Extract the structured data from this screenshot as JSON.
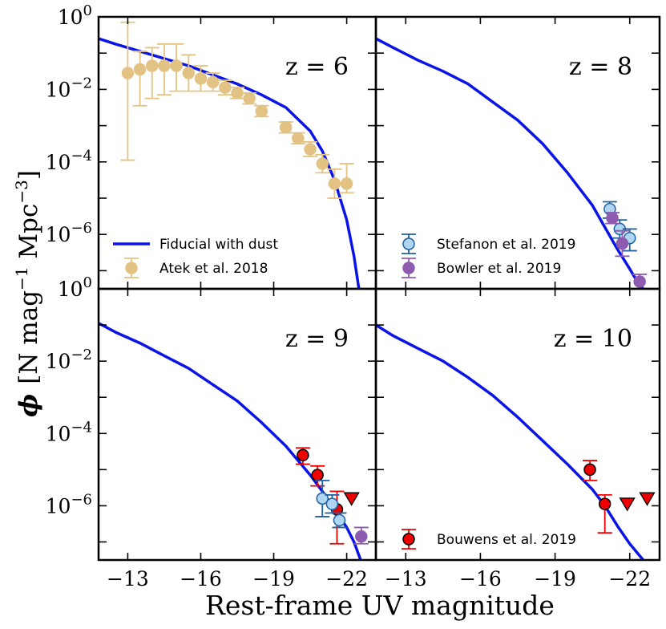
{
  "figure": {
    "ylabel_prefix": "ϕ",
    "ylabel_text": "[N mag",
    "ylabel_exp1": "−1",
    "ylabel_mid": " Mpc",
    "ylabel_exp2": "−3",
    "ylabel_end": "]",
    "xlabel": "Rest-frame UV magnitude"
  },
  "colors": {
    "model": "#0a14e6",
    "atek": "#e2c383",
    "stefanon_fill": "#aed6f2",
    "stefanon_edge": "#2060a0",
    "bowler": "#8e5bb0",
    "bouwens": "#ee0000"
  },
  "chart_data": {
    "type": "scatter",
    "shared": {
      "xlim": [
        -11.8,
        -23.2
      ],
      "ylim_log10": [
        -7.5,
        0
      ],
      "xticks": [
        -13,
        -16,
        -19,
        -22
      ],
      "xtick_labels": [
        "−13",
        "−16",
        "−19",
        "−22"
      ],
      "yticks_log10": [
        0,
        -2,
        -4,
        -6
      ],
      "ytick_base": "10",
      "ytick_exponents": [
        "0",
        "−2",
        "−4",
        "−6"
      ],
      "xlabel": "Rest-frame UV magnitude",
      "ylabel": "ϕ [N mag−1 Mpc−3]"
    },
    "panels": [
      {
        "id": "z6",
        "label": "z = 6",
        "show_ytick_labels": true,
        "show_xtick_labels": false,
        "show_top_ytick": true,
        "model": {
          "name": "Fiducial with dust",
          "x": [
            -11.8,
            -12.5,
            -13.5,
            -14.5,
            -15.5,
            -16.5,
            -17.5,
            -18.5,
            -19.5,
            -20.5,
            -21.0,
            -21.5,
            -22.0,
            -22.3,
            -22.5
          ],
          "log10_y": [
            -0.6,
            -0.75,
            -0.95,
            -1.15,
            -1.35,
            -1.6,
            -1.85,
            -2.15,
            -2.5,
            -3.15,
            -3.7,
            -4.5,
            -5.6,
            -6.6,
            -7.5
          ]
        },
        "series": [
          {
            "name": "Atek et al. 2018",
            "marker": "circle",
            "color_key": "atek",
            "points": [
              {
                "x": -13.0,
                "log10_y": -1.55,
                "lo": -3.95,
                "hi": -0.15
              },
              {
                "x": -13.5,
                "log10_y": -1.45,
                "lo": -2.45,
                "hi": -0.95
              },
              {
                "x": -14.0,
                "log10_y": -1.35,
                "lo": -2.25,
                "hi": -0.85
              },
              {
                "x": -14.5,
                "log10_y": -1.35,
                "lo": -2.15,
                "hi": -0.75
              },
              {
                "x": -15.0,
                "log10_y": -1.35,
                "lo": -2.05,
                "hi": -0.75
              },
              {
                "x": -15.5,
                "log10_y": -1.55,
                "lo": -2.05,
                "hi": -1.05
              },
              {
                "x": -16.0,
                "log10_y": -1.7,
                "lo": -2.05,
                "hi": -1.35
              },
              {
                "x": -16.5,
                "log10_y": -1.8,
                "lo": -2.05,
                "hi": -1.55
              },
              {
                "x": -17.0,
                "log10_y": -1.95,
                "lo": -2.15,
                "hi": -1.75
              },
              {
                "x": -17.5,
                "log10_y": -2.1,
                "lo": -2.25,
                "hi": -1.95
              },
              {
                "x": -18.0,
                "log10_y": -2.25,
                "lo": -2.4,
                "hi": -2.1
              },
              {
                "x": -18.5,
                "log10_y": -2.6,
                "lo": -2.75,
                "hi": -2.45
              },
              {
                "x": -19.5,
                "log10_y": -3.05,
                "lo": -3.2,
                "hi": -2.9
              },
              {
                "x": -20.0,
                "log10_y": -3.35,
                "lo": -3.5,
                "hi": -3.2
              },
              {
                "x": -20.5,
                "log10_y": -3.65,
                "lo": -3.85,
                "hi": -3.45
              },
              {
                "x": -21.0,
                "log10_y": -4.05,
                "lo": -4.3,
                "hi": -3.8
              },
              {
                "x": -21.5,
                "log10_y": -4.6,
                "lo": -5.0,
                "hi": -4.2
              },
              {
                "x": -22.0,
                "log10_y": -4.6,
                "lo": -4.85,
                "hi": -4.05
              }
            ]
          }
        ],
        "legend": [
          {
            "label": "Fiducial with dust",
            "kind": "line",
            "color_key": "model"
          },
          {
            "label": "Atek et al. 2018",
            "kind": "circle-err",
            "color_key": "atek"
          }
        ]
      },
      {
        "id": "z8",
        "label": "z = 8",
        "show_ytick_labels": false,
        "show_xtick_labels": false,
        "show_top_ytick": false,
        "model": {
          "name": "Fiducial with dust",
          "x": [
            -11.8,
            -12.5,
            -13.5,
            -14.5,
            -15.5,
            -16.5,
            -17.5,
            -18.5,
            -19.5,
            -20.5,
            -21.0,
            -21.5,
            -22.0,
            -22.3,
            -22.6
          ],
          "log10_y": [
            -0.6,
            -0.85,
            -1.2,
            -1.5,
            -1.85,
            -2.35,
            -2.85,
            -3.5,
            -4.3,
            -5.2,
            -5.8,
            -6.4,
            -6.95,
            -7.3,
            -7.55
          ]
        },
        "series": [
          {
            "name": "Stefanon et al. 2019",
            "marker": "circle-open",
            "color_key": "stefanon_fill",
            "points": [
              {
                "x": -21.2,
                "log10_y": -5.3,
                "lo": -5.55,
                "hi": -5.1
              },
              {
                "x": -21.6,
                "log10_y": -5.85,
                "lo": -6.1,
                "hi": -5.6
              },
              {
                "x": -22.0,
                "log10_y": -6.1,
                "lo": -6.45,
                "hi": -5.85
              }
            ]
          },
          {
            "name": "Bowler et al. 2019",
            "marker": "circle",
            "color_key": "bowler",
            "points": [
              {
                "x": -21.3,
                "log10_y": -5.55,
                "lo": -5.7,
                "hi": -5.4
              },
              {
                "x": -21.7,
                "log10_y": -6.25,
                "lo": -6.6,
                "hi": -5.9
              },
              {
                "x": -22.4,
                "log10_y": -7.3,
                "lo": -7.5,
                "hi": -7.1
              }
            ]
          }
        ],
        "legend": [
          {
            "label": "Stefanon et al. 2019",
            "kind": "circle-err-open",
            "color_key": "stefanon_fill"
          },
          {
            "label": "Bowler et al. 2019",
            "kind": "circle-err",
            "color_key": "bowler"
          }
        ]
      },
      {
        "id": "z9",
        "label": "z = 9",
        "show_ytick_labels": true,
        "show_xtick_labels": true,
        "show_top_ytick": true,
        "model": {
          "name": "Fiducial with dust",
          "x": [
            -11.8,
            -12.5,
            -13.5,
            -14.5,
            -15.5,
            -16.5,
            -17.5,
            -18.5,
            -19.5,
            -20.5,
            -21.0,
            -21.5,
            -22.0,
            -22.3,
            -22.6
          ],
          "log10_y": [
            -0.95,
            -1.2,
            -1.5,
            -1.85,
            -2.2,
            -2.65,
            -3.1,
            -3.7,
            -4.35,
            -5.15,
            -5.6,
            -6.1,
            -6.6,
            -7.0,
            -7.55
          ]
        },
        "series": [
          {
            "name": "Bouwens et al. 2019",
            "marker": "circle",
            "color_key": "bouwens",
            "points": [
              {
                "x": -20.2,
                "log10_y": -4.6,
                "lo": -4.85,
                "hi": -4.4
              },
              {
                "x": -20.8,
                "log10_y": -5.15,
                "lo": -5.45,
                "hi": -4.9
              },
              {
                "x": -21.6,
                "log10_y": -6.1,
                "lo": -7.05,
                "hi": -5.6
              }
            ]
          },
          {
            "name": "Stefanon et al. 2019",
            "marker": "circle-open",
            "color_key": "stefanon_fill",
            "points": [
              {
                "x": -21.0,
                "log10_y": -5.8,
                "lo": -6.3,
                "hi": -5.3
              },
              {
                "x": -21.4,
                "log10_y": -5.95,
                "lo": -6.2,
                "hi": -5.7
              },
              {
                "x": -21.7,
                "log10_y": -6.4,
                "lo": -6.6,
                "hi": -6.2
              }
            ]
          },
          {
            "name": "Bowler et al. 2019",
            "marker": "circle",
            "color_key": "bowler",
            "points": [
              {
                "x": -22.6,
                "log10_y": -6.85,
                "lo": -7.05,
                "hi": -6.6
              }
            ]
          }
        ],
        "upper_limits": [
          {
            "x": -22.2,
            "log10_y": -5.8,
            "color_key": "bouwens"
          }
        ],
        "legend": []
      },
      {
        "id": "z10",
        "label": "z = 10",
        "show_ytick_labels": false,
        "show_xtick_labels": true,
        "show_top_ytick": false,
        "model": {
          "name": "Fiducial with dust",
          "x": [
            -11.8,
            -12.5,
            -13.5,
            -14.5,
            -15.5,
            -16.5,
            -17.5,
            -18.5,
            -19.5,
            -20.5,
            -21.0,
            -21.5,
            -22.0,
            -22.3,
            -22.6
          ],
          "log10_y": [
            -1.0,
            -1.3,
            -1.65,
            -2.0,
            -2.45,
            -2.95,
            -3.55,
            -4.2,
            -4.85,
            -5.55,
            -6.0,
            -6.55,
            -7.05,
            -7.3,
            -7.55
          ]
        },
        "series": [
          {
            "name": "Bouwens et al. 2019",
            "marker": "circle",
            "color_key": "bouwens",
            "points": [
              {
                "x": -20.4,
                "log10_y": -5.0,
                "lo": -5.3,
                "hi": -4.75
              },
              {
                "x": -21.0,
                "log10_y": -5.95,
                "lo": -6.75,
                "hi": -5.7
              }
            ]
          }
        ],
        "upper_limits": [
          {
            "x": -21.9,
            "log10_y": -5.95,
            "color_key": "bouwens"
          },
          {
            "x": -22.7,
            "log10_y": -5.8,
            "color_key": "bouwens"
          }
        ],
        "legend": [
          {
            "label": "Bouwens et al. 2019",
            "kind": "circle-err",
            "color_key": "bouwens"
          }
        ]
      }
    ]
  }
}
